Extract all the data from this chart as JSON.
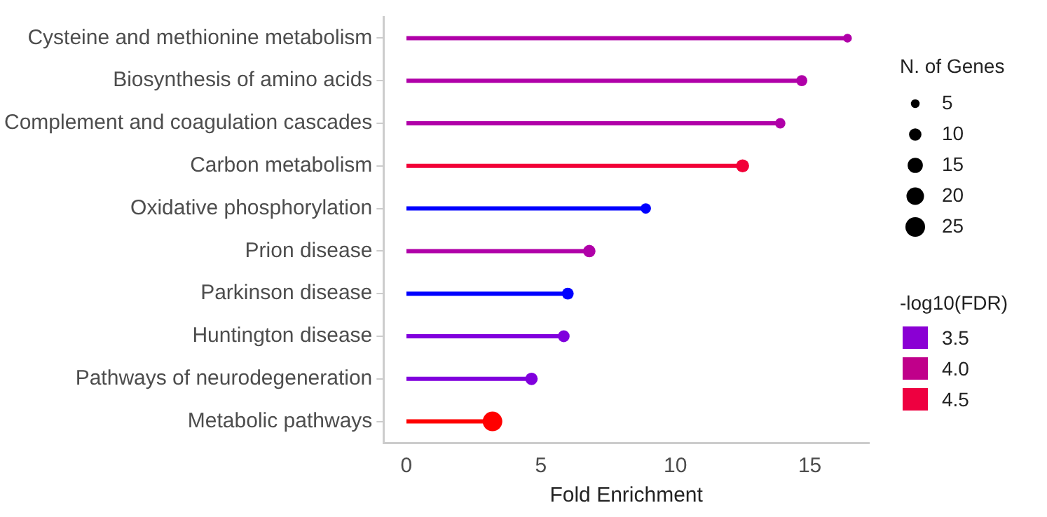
{
  "chart_data": {
    "type": "lollipop",
    "orientation": "horizontal",
    "xlabel": "Fold Enrichment",
    "categories": [
      "Cysteine and methionine metabolism",
      "Biosynthesis of amino acids",
      "Complement and coagulation cascades",
      "Carbon metabolism",
      "Oxidative phosphorylation",
      "Prion disease",
      "Parkinson disease",
      "Huntington disease",
      "Pathways of neurodegeneration",
      "Metabolic pathways"
    ],
    "values": [
      16.4,
      14.7,
      13.9,
      12.5,
      8.9,
      6.8,
      6.0,
      5.85,
      4.65,
      3.2
    ],
    "colors": [
      "#b000a8",
      "#b000a8",
      "#b000a8",
      "#f20038",
      "#0000ff",
      "#b000a8",
      "#0000ff",
      "#8000dd",
      "#8000dd",
      "#ff0000"
    ],
    "sizes": [
      5,
      8,
      7,
      11,
      7,
      10,
      9,
      9,
      10,
      25
    ],
    "size_legend": [
      5,
      10,
      15,
      20,
      25
    ],
    "legend_title": "N. of Genes",
    "clabel": "-log10(FDR)",
    "annotations": [
      "3.5",
      "4.0",
      "4.5"
    ],
    "xlim": [
      -0.85,
      17.2
    ],
    "xticks": [
      0,
      5,
      10,
      15
    ],
    "grid": false
  }
}
